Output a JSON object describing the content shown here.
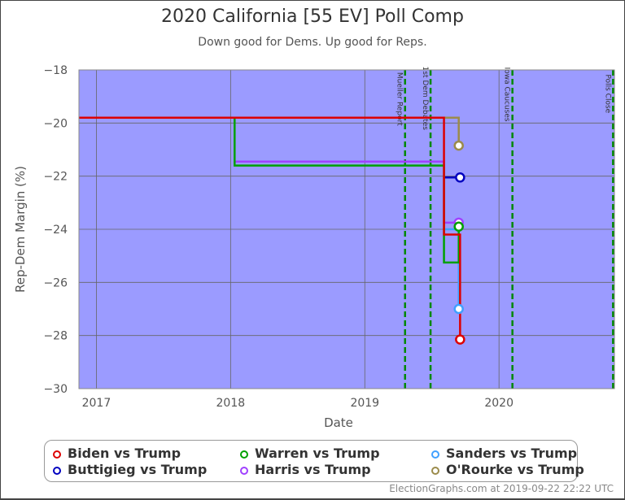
{
  "chart_data": {
    "type": "line",
    "title": "2020 California [55 EV] Poll Comp",
    "subtitle": "Down good for Dems. Up good for Reps.",
    "xlabel": "Date",
    "ylabel": "Rep-Dem Margin (%)",
    "xlim": [
      2016.87,
      2020.86
    ],
    "ylim": [
      -30,
      -18
    ],
    "xticks": [
      {
        "v": 2017,
        "label": "2017"
      },
      {
        "v": 2018,
        "label": "2018"
      },
      {
        "v": 2019,
        "label": "2019"
      },
      {
        "v": 2020,
        "label": "2020"
      }
    ],
    "yticks": [
      {
        "v": -18,
        "label": "−18"
      },
      {
        "v": -20,
        "label": "−20"
      },
      {
        "v": -22,
        "label": "−22"
      },
      {
        "v": -24,
        "label": "−24"
      },
      {
        "v": -26,
        "label": "−26"
      },
      {
        "v": -28,
        "label": "−28"
      },
      {
        "v": -30,
        "label": "−30"
      }
    ],
    "grid": true,
    "background": "#9b9bff",
    "events": [
      {
        "date": 2019.3,
        "label": "Mueller Report"
      },
      {
        "date": 2019.49,
        "label": "1st Dem Debates"
      },
      {
        "date": 2020.1,
        "label": "Iowa Caucuses"
      },
      {
        "date": 2020.85,
        "label": "Polls Close"
      }
    ],
    "series": [
      {
        "name": "O'Rourke vs Trump",
        "color": "#9b8b4b",
        "points": [
          [
            2016.87,
            -19.8
          ],
          [
            2019.7,
            -19.8
          ],
          [
            2019.7,
            -20.85
          ]
        ]
      },
      {
        "name": "Harris vs Trump",
        "color": "#a040ff",
        "points": [
          [
            2018.03,
            -21.45
          ],
          [
            2019.59,
            -21.45
          ],
          [
            2019.59,
            -23.75
          ],
          [
            2019.7,
            -23.75
          ]
        ]
      },
      {
        "name": "Buttigieg vs Trump",
        "color": "#0000c0",
        "points": [
          [
            2019.59,
            -22.05
          ],
          [
            2019.71,
            -22.05
          ]
        ]
      },
      {
        "name": "Sanders vs Trump",
        "color": "#40a0ff",
        "points": [
          [
            2019.59,
            -24.0
          ],
          [
            2019.7,
            -24.0
          ],
          [
            2019.7,
            -27.0
          ]
        ]
      },
      {
        "name": "Warren vs Trump",
        "color": "#00a000",
        "points": [
          [
            2016.87,
            -19.8
          ],
          [
            2018.03,
            -19.8
          ],
          [
            2018.03,
            -21.6
          ],
          [
            2019.59,
            -21.6
          ],
          [
            2019.59,
            -25.25
          ],
          [
            2019.7,
            -25.25
          ],
          [
            2019.7,
            -23.9
          ]
        ]
      },
      {
        "name": "Biden vs Trump",
        "color": "#dd0000",
        "points": [
          [
            2016.87,
            -19.8
          ],
          [
            2019.59,
            -19.8
          ],
          [
            2019.59,
            -24.2
          ],
          [
            2019.71,
            -24.2
          ],
          [
            2019.71,
            -28.15
          ]
        ]
      }
    ]
  },
  "legend": [
    {
      "name": "Biden vs Trump",
      "color": "#dd0000"
    },
    {
      "name": "Buttigieg vs Trump",
      "color": "#0000c0"
    },
    {
      "name": "Warren vs Trump",
      "color": "#00a000"
    },
    {
      "name": "Harris vs Trump",
      "color": "#a040ff"
    },
    {
      "name": "Sanders vs Trump",
      "color": "#40a0ff"
    },
    {
      "name": "O'Rourke vs Trump",
      "color": "#9b8b4b"
    }
  ],
  "credit": "ElectionGraphs.com at 2019-09-22 22:22 UTC"
}
